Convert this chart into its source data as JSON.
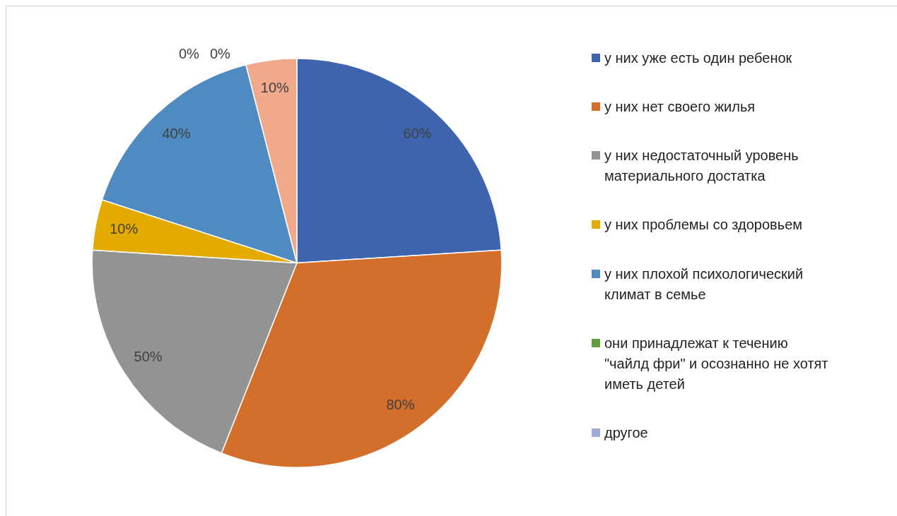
{
  "chart_data": {
    "type": "pie",
    "categories": [
      "у них уже есть один ребенок",
      "у них нет своего жилья",
      "у них недостаточный уровень материального достатка",
      "у них проблемы со здоровьем",
      "у них плохой психологический климат в семье",
      "они принадлежат к течению \"чайлд фри\" и осознанно не хотят иметь детей",
      "другое",
      null
    ],
    "values": [
      60,
      80,
      50,
      10,
      40,
      0,
      0,
      10
    ],
    "colors": [
      "#3d64ad",
      "#d46e2b",
      "#939393",
      "#e3aa00",
      "#4f8bc0",
      "#5f9e3a",
      "#9dafd9",
      "#f0a98a"
    ],
    "value_labels": [
      "60%",
      "80%",
      "50%",
      "10%",
      "40%",
      "0%",
      "0%",
      "10%"
    ],
    "legend": "right"
  }
}
